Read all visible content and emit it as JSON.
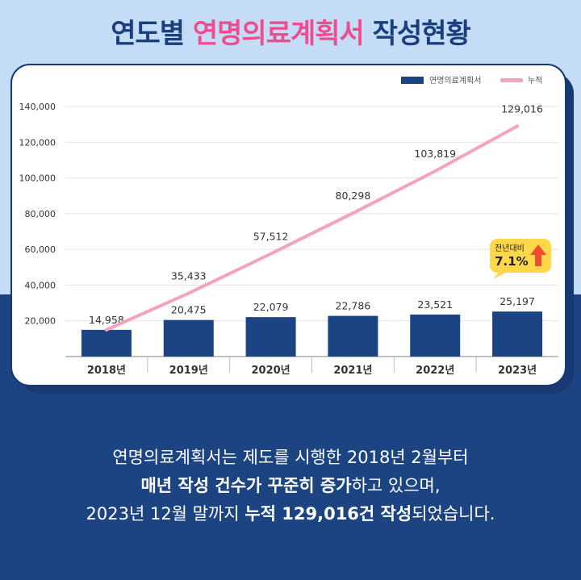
{
  "title": {
    "part1": "연도별 ",
    "highlight": "연명의료계획서",
    "part2": " 작성현황"
  },
  "colors": {
    "bar": "#1c4482",
    "line": "#f4a1c2",
    "highlight": "#ee4e8f",
    "badge": "#ffd84a",
    "arrow": "#ef4d2f"
  },
  "chart_data": {
    "type": "bar",
    "categories": [
      "2018년",
      "2019년",
      "2020년",
      "2021년",
      "2022년",
      "2023년"
    ],
    "series": [
      {
        "name": "연명의료계획서",
        "type": "bar",
        "values": [
          14958,
          20475,
          22079,
          22786,
          23521,
          25197
        ],
        "labels": [
          "14,958",
          "20,475",
          "22,079",
          "22,786",
          "23,521",
          "25,197"
        ]
      },
      {
        "name": "누적",
        "type": "line",
        "values": [
          14958,
          35433,
          57512,
          80298,
          103819,
          129016
        ],
        "labels": [
          "",
          "35,433",
          "57,512",
          "80,298",
          "103,819",
          "129,016"
        ]
      }
    ],
    "ylim": [
      0,
      140000
    ],
    "yticks": [
      20000,
      40000,
      60000,
      80000,
      100000,
      120000,
      140000
    ],
    "ytick_labels": [
      "20,000",
      "40,000",
      "60,000",
      "80,000",
      "100,000",
      "120,000",
      "140,000"
    ],
    "grid": true,
    "legend": "top-right",
    "annotation": {
      "label": "전년대비",
      "value": "7.1%",
      "direction": "up"
    }
  },
  "description": {
    "line1": "연명의료계획서는 제도를 시행한 2018년 2월부터",
    "line2_bold": "매년 작성 건수가 꾸준히 증가",
    "line2_rest": "하고 있으며,",
    "line3_pre": "2023년 12월 말까지 ",
    "line3_bold1": "누적 129,016건 작성",
    "line3_rest": "되었습니다."
  }
}
